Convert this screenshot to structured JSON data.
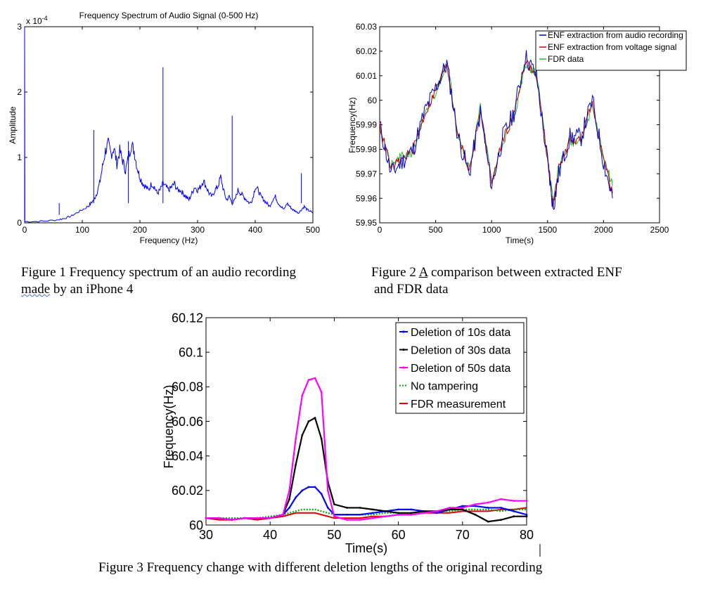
{
  "captions": {
    "fig1_line1": "Figure 1 Frequency spectrum of an audio recording",
    "fig1_line2_word": "made",
    "fig1_line2_rest": " by an iPhone 4",
    "fig2_line1_pre": "Figure 2 ",
    "fig2_line1_word": "A",
    "fig2_line1_post": " comparison between extracted ENF",
    "fig2_line2": "and FDR data",
    "fig3": "Figure 3 Frequency change with different deletion lengths of the original recording"
  },
  "chart_data": [
    {
      "type": "line",
      "title": "Frequency Spectrum of Audio Signal (0-500 Hz)",
      "xlabel": "Frequency (Hz)",
      "ylabel": "Amplitude",
      "y_multiplier_label": "x 10",
      "y_multiplier_exp": "-4",
      "xlim": [
        0,
        500
      ],
      "ylim": [
        0,
        3
      ],
      "xticks": [
        "0",
        "100",
        "200",
        "300",
        "400",
        "500"
      ],
      "yticks": [
        "0",
        "1",
        "2",
        "3"
      ],
      "color": "#0000ff",
      "series": [
        {
          "x": [
            0,
            20,
            40,
            60,
            70,
            80,
            90,
            100,
            110,
            115,
            120,
            125,
            130,
            135,
            140,
            145,
            150,
            155,
            160,
            165,
            170,
            175,
            180,
            185,
            190,
            195,
            200,
            205,
            210,
            215,
            220,
            225,
            230,
            235,
            240,
            245,
            250,
            255,
            260,
            265,
            270,
            275,
            280,
            285,
            290,
            295,
            300,
            305,
            310,
            315,
            320,
            325,
            330,
            335,
            340,
            345,
            350,
            355,
            360,
            365,
            370,
            375,
            380,
            385,
            390,
            395,
            400,
            405,
            410,
            415,
            420,
            425,
            430,
            435,
            440,
            445,
            450,
            455,
            460,
            465,
            470,
            475,
            480,
            485,
            490,
            495,
            500
          ],
          "values": [
            0.02,
            0.02,
            0.03,
            0.05,
            0.07,
            0.1,
            0.15,
            0.2,
            0.25,
            0.3,
            0.35,
            0.45,
            0.6,
            0.85,
            1.1,
            1.2,
            1.05,
            1.15,
            0.9,
            1.1,
            0.95,
            0.8,
            1.0,
            1.2,
            1.1,
            0.85,
            0.7,
            0.6,
            0.55,
            0.5,
            0.6,
            0.55,
            0.45,
            0.5,
            0.6,
            0.55,
            0.5,
            0.55,
            0.6,
            0.5,
            0.5,
            0.45,
            0.4,
            0.35,
            0.45,
            0.55,
            0.5,
            0.55,
            0.65,
            0.55,
            0.45,
            0.4,
            0.5,
            0.55,
            0.7,
            0.5,
            0.35,
            0.4,
            0.3,
            0.35,
            0.5,
            0.45,
            0.4,
            0.35,
            0.3,
            0.35,
            0.55,
            0.5,
            0.4,
            0.35,
            0.3,
            0.25,
            0.35,
            0.4,
            0.3,
            0.25,
            0.2,
            0.3,
            0.25,
            0.2,
            0.18,
            0.15,
            0.2,
            0.25,
            0.2,
            0.18,
            0.15
          ]
        }
      ],
      "spikes": [
        {
          "x": 60,
          "value": 0.12
        },
        {
          "x": 120,
          "value": 1.42
        },
        {
          "x": 180,
          "value": 1.25
        },
        {
          "x": 240,
          "value": 2.38
        },
        {
          "x": 360,
          "value": 1.64
        },
        {
          "x": 480,
          "value": 0.76
        }
      ]
    },
    {
      "type": "line",
      "title": "",
      "xlabel": "Time(s)",
      "ylabel": "Frequency(Hz)",
      "xlim": [
        0,
        2500
      ],
      "ylim": [
        59.95,
        60.03
      ],
      "xticks": [
        "0",
        "500",
        "1000",
        "1500",
        "2000",
        "2500"
      ],
      "yticks": [
        "59.95",
        "59.96",
        "59.97",
        "59.98",
        "59.99",
        "60",
        "60.01",
        "60.02",
        "60.03"
      ],
      "legend_position": "top-right",
      "x": [
        0,
        100,
        200,
        300,
        400,
        500,
        600,
        700,
        800,
        900,
        1000,
        1100,
        1200,
        1300,
        1400,
        1500,
        1550,
        1600,
        1700,
        1800,
        1900,
        2000,
        2080
      ],
      "series": [
        {
          "name": "ENF extraction from audio recording",
          "color": "#0000cc",
          "values": [
            59.99,
            59.97,
            59.975,
            59.98,
            59.995,
            60.005,
            60.015,
            59.985,
            59.97,
            59.995,
            59.965,
            59.985,
            59.995,
            60.018,
            60.01,
            59.975,
            59.956,
            59.97,
            59.985,
            59.985,
            60.0,
            59.975,
            59.96
          ]
        },
        {
          "name": "ENF extraction from voltage signal",
          "color": "#cc0000",
          "values": [
            59.99,
            59.972,
            59.976,
            59.98,
            59.994,
            60.004,
            60.015,
            59.986,
            59.971,
            59.996,
            59.966,
            59.984,
            59.994,
            60.016,
            60.01,
            59.976,
            59.957,
            59.972,
            59.984,
            59.984,
            59.999,
            59.976,
            59.962
          ]
        },
        {
          "name": "FDR data",
          "color": "#22bb22",
          "values": [
            59.99,
            59.973,
            59.977,
            59.979,
            59.993,
            60.003,
            60.016,
            59.987,
            59.972,
            59.997,
            59.967,
            59.983,
            59.993,
            60.015,
            60.011,
            59.977,
            59.958,
            59.973,
            59.983,
            59.983,
            59.998,
            59.977,
            59.965
          ]
        }
      ]
    },
    {
      "type": "line",
      "title": "",
      "xlabel": "Time(s)",
      "ylabel": "Frequency(Hz)",
      "xlim": [
        30,
        80
      ],
      "ylim": [
        60,
        60.12
      ],
      "xticks": [
        "30",
        "40",
        "50",
        "60",
        "70",
        "80"
      ],
      "yticks": [
        "60",
        "60.02",
        "60.04",
        "60.06",
        "60.08",
        "60.1",
        "60.12"
      ],
      "legend_position": "top-right",
      "x": [
        30,
        32,
        34,
        36,
        38,
        40,
        42,
        43,
        44,
        45,
        46,
        47,
        48,
        49,
        50,
        52,
        54,
        56,
        58,
        60,
        62,
        64,
        66,
        68,
        70,
        72,
        74,
        76,
        78,
        80
      ],
      "series": [
        {
          "name": "Deletion of 10s data",
          "color": "#0000ff",
          "marker": "dot",
          "values": [
            60.004,
            60.004,
            60.003,
            60.004,
            60.004,
            60.004,
            60.006,
            60.01,
            60.016,
            60.02,
            60.022,
            60.022,
            60.018,
            60.01,
            60.006,
            60.006,
            60.006,
            60.007,
            60.008,
            60.009,
            60.009,
            60.008,
            60.007,
            60.009,
            60.011,
            60.011,
            60.01,
            60.01,
            60.008,
            60.006
          ]
        },
        {
          "name": "Deletion of 30s data",
          "color": "#000000",
          "marker": "dot",
          "values": [
            60.004,
            60.004,
            60.003,
            60.004,
            60.004,
            60.004,
            60.006,
            60.015,
            60.035,
            60.052,
            60.06,
            60.062,
            60.05,
            60.025,
            60.012,
            60.01,
            60.01,
            60.009,
            60.008,
            60.007,
            60.007,
            60.008,
            60.008,
            60.009,
            60.009,
            60.006,
            60.002,
            60.003,
            60.005,
            60.005
          ]
        },
        {
          "name": "Deletion of 50s data",
          "color": "#ff00ff",
          "marker": "dot",
          "values": [
            60.004,
            60.004,
            60.003,
            60.004,
            60.004,
            60.004,
            60.006,
            60.02,
            60.05,
            60.075,
            60.084,
            60.085,
            60.077,
            60.02,
            60.005,
            60.003,
            60.003,
            60.004,
            60.005,
            60.006,
            60.006,
            60.007,
            60.008,
            60.01,
            60.01,
            60.012,
            60.013,
            60.015,
            60.014,
            60.014
          ]
        },
        {
          "name": "No tampering",
          "color": "#00aa00",
          "dash": "dotted",
          "values": [
            60.004,
            60.004,
            60.004,
            60.004,
            60.004,
            60.005,
            60.006,
            60.007,
            60.008,
            60.009,
            60.009,
            60.009,
            60.008,
            60.007,
            60.006,
            60.006,
            60.006,
            60.006,
            60.007,
            60.007,
            60.007,
            60.008,
            60.008,
            60.008,
            60.009,
            60.009,
            60.009,
            60.008,
            60.009,
            60.009
          ]
        },
        {
          "name": "FDR measurement",
          "color": "#dd0000",
          "values": [
            60.004,
            60.003,
            60.003,
            60.004,
            60.003,
            60.004,
            60.005,
            60.006,
            60.007,
            60.007,
            60.007,
            60.007,
            60.006,
            60.005,
            60.004,
            60.004,
            60.004,
            60.005,
            60.005,
            60.006,
            60.006,
            60.007,
            60.007,
            60.007,
            60.008,
            60.008,
            60.008,
            60.009,
            60.009,
            60.01
          ]
        }
      ]
    }
  ]
}
